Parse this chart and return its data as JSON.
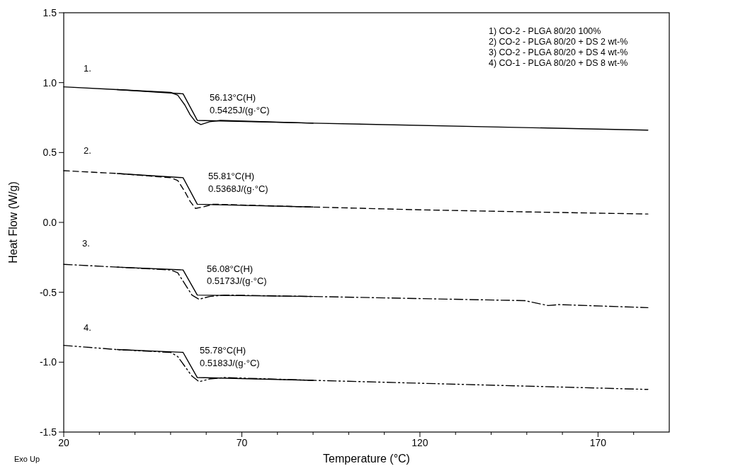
{
  "chart_data": {
    "type": "line",
    "xlabel": "Temperature (°C)",
    "ylabel": "Heat Flow (W/g)",
    "xlim": [
      20,
      190
    ],
    "ylim": [
      -1.5,
      1.5
    ],
    "xticks": [
      20,
      {
        "value": 30,
        "label": null
      },
      {
        "value": 40,
        "label": null
      },
      {
        "value": 50,
        "label": null
      },
      {
        "value": 60,
        "label": null
      },
      70,
      {
        "value": 80,
        "label": null
      },
      {
        "value": 90,
        "label": null
      },
      {
        "value": 100,
        "label": null
      },
      {
        "value": 110,
        "label": null
      },
      120,
      {
        "value": 130,
        "label": null
      },
      {
        "value": 140,
        "label": null
      },
      {
        "value": 150,
        "label": null
      },
      {
        "value": 160,
        "label": null
      },
      170,
      {
        "value": 180,
        "label": null
      }
    ],
    "yticks": [
      {
        "value": -1.5,
        "label": "-1.5"
      },
      {
        "value": -1.0,
        "label": "-1.0"
      },
      {
        "value": -0.5,
        "label": "-0.5"
      },
      {
        "value": 0.0,
        "label": "0.0"
      },
      {
        "value": 0.5,
        "label": "0.5"
      },
      {
        "value": 1.0,
        "label": "1.0"
      },
      {
        "value": 1.5,
        "label": "1.5"
      }
    ],
    "grid": false,
    "series": [
      {
        "color": "#000000",
        "line_style": "solid",
        "x": [
          20,
          35,
          50,
          52,
          54,
          55.5,
          57,
          58.5,
          61,
          64,
          90,
          184
        ],
        "values": [
          0.97,
          0.95,
          0.93,
          0.91,
          0.84,
          0.77,
          0.72,
          0.7,
          0.72,
          0.73,
          0.71,
          0.66
        ]
      },
      {
        "color": "#000000",
        "line_style": "dashed",
        "x": [
          20,
          35,
          50,
          52,
          54,
          55.5,
          57,
          59,
          62,
          90,
          120,
          150,
          184
        ],
        "values": [
          0.37,
          0.35,
          0.32,
          0.3,
          0.22,
          0.15,
          0.1,
          0.11,
          0.13,
          0.11,
          0.09,
          0.075,
          0.06
        ]
      },
      {
        "color": "#000000",
        "line_style": "dashdot",
        "x": [
          20,
          35,
          50,
          52,
          54,
          56,
          58,
          61,
          65,
          90,
          149.5,
          156,
          159,
          184
        ],
        "values": [
          -0.3,
          -0.32,
          -0.34,
          -0.36,
          -0.44,
          -0.52,
          -0.55,
          -0.53,
          -0.52,
          -0.53,
          -0.56,
          -0.595,
          -0.588,
          -0.61
        ]
      },
      {
        "color": "#000000",
        "line_style": "dashdotdot",
        "x": [
          20,
          35,
          50,
          52,
          54,
          56,
          58,
          61,
          65,
          90,
          184
        ],
        "values": [
          -0.88,
          -0.91,
          -0.93,
          -0.96,
          -1.03,
          -1.1,
          -1.14,
          -1.12,
          -1.11,
          -1.13,
          -1.195
        ]
      },
      {
        "color": "#000000",
        "line_style": "solid",
        "x": [
          35,
          53.5,
          57.5,
          90
        ],
        "values": [
          0.95,
          0.92,
          0.73,
          0.71
        ]
      },
      {
        "color": "#000000",
        "line_style": "solid",
        "x": [
          35,
          53.5,
          57.5,
          90
        ],
        "values": [
          0.35,
          0.32,
          0.13,
          0.11
        ]
      },
      {
        "color": "#000000",
        "line_style": "solid",
        "x": [
          35,
          53.5,
          57.5,
          90
        ],
        "values": [
          -0.32,
          -0.34,
          -0.52,
          -0.53
        ]
      },
      {
        "color": "#000000",
        "line_style": "solid",
        "x": [
          35,
          53.5,
          57.5,
          90
        ],
        "values": [
          -0.91,
          -0.93,
          -1.11,
          -1.13
        ]
      }
    ],
    "annotations": [
      "1)  CO-2 - PLGA 80/20 100%",
      "2)  CO-2 - PLGA 80/20 + DS 2 wt-%",
      "3)  CO-2 - PLGA 80/20 + DS 4 wt-%",
      "4)  CO-1 - PLGA 80/20 + DS 8 wt-%",
      "Exo Up",
      "1.",
      "2.",
      "3.",
      "4.",
      "56.13°C(H)",
      "0.5425J/(g·°C)",
      "55.81°C(H)",
      "0.5368J/(g·°C)",
      "56.08°C(H)",
      "0.5173J/(g·°C)",
      "55.78°C(H)",
      "0.5183J/(g·°C)"
    ]
  }
}
